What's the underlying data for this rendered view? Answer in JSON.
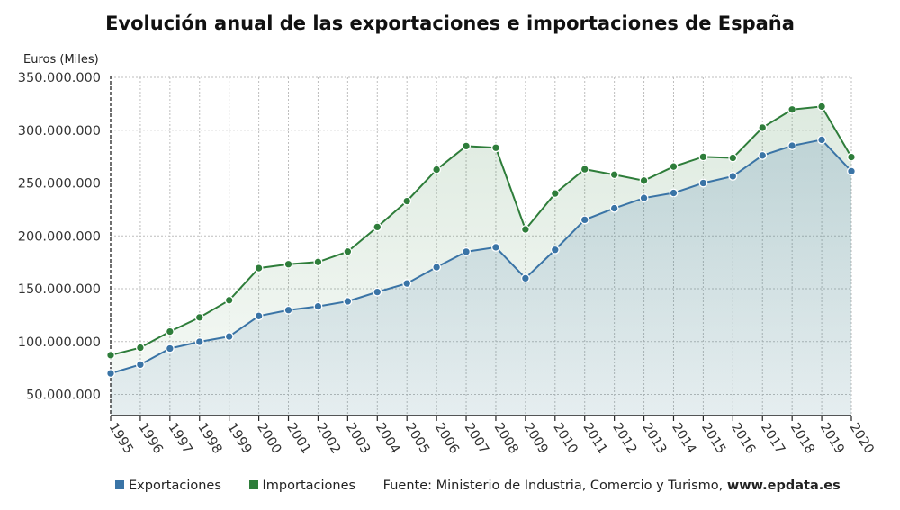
{
  "colors": {
    "exports": "#3a74a6",
    "imports": "#2e7d3a",
    "grid": "#bdbdbd"
  },
  "chart_data": {
    "type": "area",
    "title": "Evolución anual de las exportaciones e importaciones de España",
    "ylabel": "Euros (Miles)",
    "xlabel": "",
    "x": [
      "1995",
      "1996",
      "1997",
      "1998",
      "1999",
      "2000",
      "2001",
      "2002",
      "2003",
      "2004",
      "2005",
      "2006",
      "2007",
      "2008",
      "2009",
      "2010",
      "2011",
      "2012",
      "2013",
      "2014",
      "2015",
      "2016",
      "2017",
      "2018",
      "2019",
      "2020"
    ],
    "ylim": [
      30000000,
      350000000
    ],
    "yticks": [
      50000000,
      100000000,
      150000000,
      200000000,
      250000000,
      300000000,
      350000000
    ],
    "ytick_labels": [
      "50.000.000",
      "100.000.000",
      "150.000.000",
      "200.000.000",
      "250.000.000",
      "300.000.000",
      "350.000.000"
    ],
    "grid": true,
    "legend_position": "bottom",
    "series": [
      {
        "name": "Exportaciones",
        "values": [
          69900000,
          78200000,
          93400000,
          99800000,
          104800000,
          124200000,
          129800000,
          133300000,
          138100000,
          146900000,
          155000000,
          170400000,
          185000000,
          189200000,
          159900000,
          186800000,
          215200000,
          226100000,
          235800000,
          240600000,
          250000000,
          256400000,
          276100000,
          285300000,
          290900000,
          261200000
        ]
      },
      {
        "name": "Importaciones",
        "values": [
          87100000,
          94200000,
          109500000,
          122900000,
          139100000,
          169500000,
          173200000,
          175300000,
          185100000,
          208400000,
          232900000,
          262700000,
          285000000,
          283400000,
          206100000,
          240100000,
          263100000,
          257900000,
          252300000,
          265600000,
          274800000,
          273800000,
          302400000,
          319600000,
          322400000,
          274600000
        ]
      }
    ]
  },
  "footer": {
    "legend": [
      "Exportaciones",
      "Importaciones"
    ],
    "source_prefix": "Fuente: Ministerio de Industria, Comercio y Turismo, ",
    "source_site": "www.epdata.es"
  }
}
